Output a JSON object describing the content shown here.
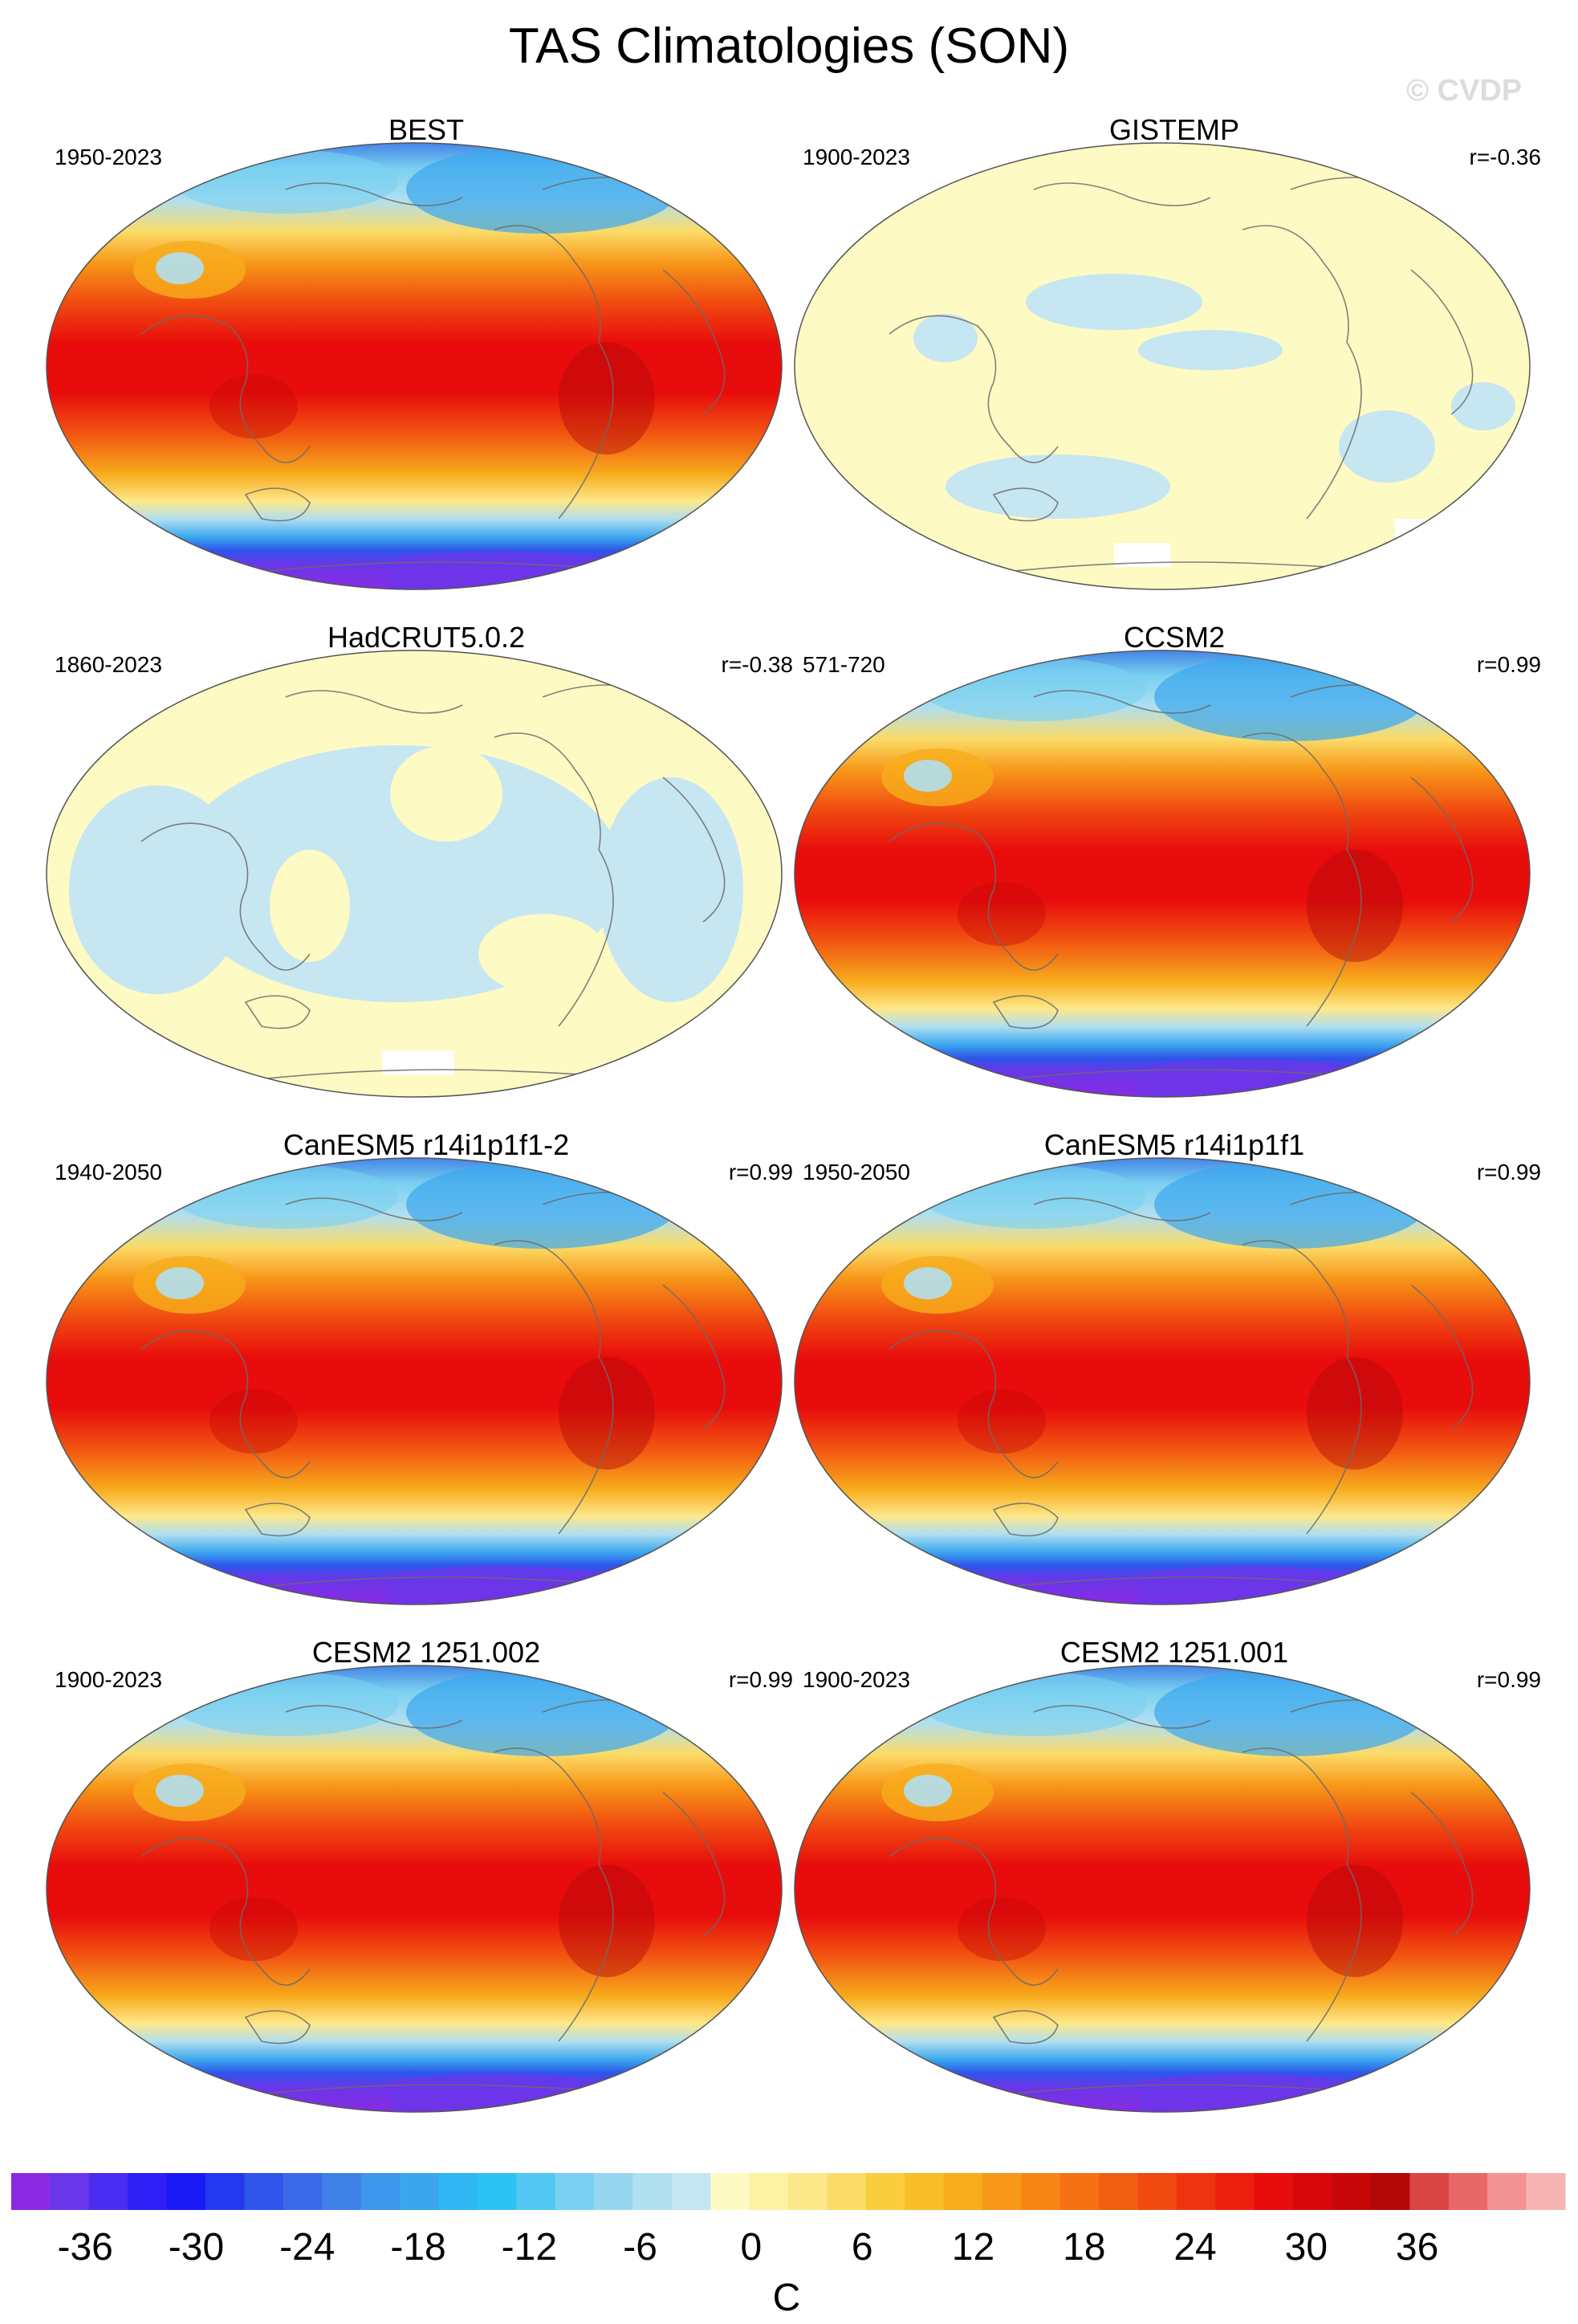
{
  "title": "TAS Climatologies (SON)",
  "watermark": "© CVDP",
  "panels": [
    {
      "title": "BEST",
      "period": "1950-2023",
      "corr": "",
      "field": "model"
    },
    {
      "title": "GISTEMP",
      "period": "1900-2023",
      "corr": "r=-0.36",
      "field": "anomaly-a"
    },
    {
      "title": "HadCRUT5.0.2",
      "period": "1860-2023",
      "corr": "r=-0.38",
      "field": "anomaly-b"
    },
    {
      "title": "CCSM2",
      "period": "571-720",
      "corr": "r=0.99",
      "field": "model"
    },
    {
      "title": "CanESM5 r14i1p1f1-2",
      "period": "1940-2050",
      "corr": "r=0.99",
      "field": "model"
    },
    {
      "title": "CanESM5 r14i1p1f1",
      "period": "1950-2050",
      "corr": "r=0.99",
      "field": "model"
    },
    {
      "title": "CESM2 1251.002",
      "period": "1900-2023",
      "corr": "r=0.99",
      "field": "model"
    },
    {
      "title": "CESM2 1251.001",
      "period": "1900-2023",
      "corr": "r=0.99",
      "field": "model"
    }
  ],
  "colorbar": {
    "unit": "C",
    "tick_values": [
      -36,
      -30,
      -24,
      -18,
      -12,
      -6,
      0,
      6,
      12,
      18,
      24,
      30,
      36
    ],
    "tick_labels": [
      "-36",
      "-30",
      "-24",
      "-18",
      "-12",
      "-6",
      "0",
      "6",
      "12",
      "18",
      "24",
      "30",
      "36"
    ],
    "min": -40,
    "max": 44,
    "step": 2,
    "colors": [
      "#8a2be2",
      "#6a36ea",
      "#4a2df0",
      "#2f1ef6",
      "#1a1af6",
      "#2438f0",
      "#2d55ea",
      "#3a6ae8",
      "#3f80e6",
      "#3e96ea",
      "#3ba6ee",
      "#30b6f2",
      "#2cc2f3",
      "#52c8f2",
      "#7ad0f0",
      "#96d6ee",
      "#b0dff0",
      "#c6e6f2",
      "#fdfac3",
      "#fdf2a2",
      "#fde88a",
      "#fbdc68",
      "#f9cd3e",
      "#f7bf25",
      "#f7ac1c",
      "#f79818",
      "#f68516",
      "#f47214",
      "#f25e12",
      "#f04a10",
      "#ee340e",
      "#ec1e0c",
      "#e80c0c",
      "#d8080a",
      "#c60808",
      "#b40808",
      "#d94444",
      "#e86868",
      "#f39292",
      "#f8b4b4"
    ]
  }
}
